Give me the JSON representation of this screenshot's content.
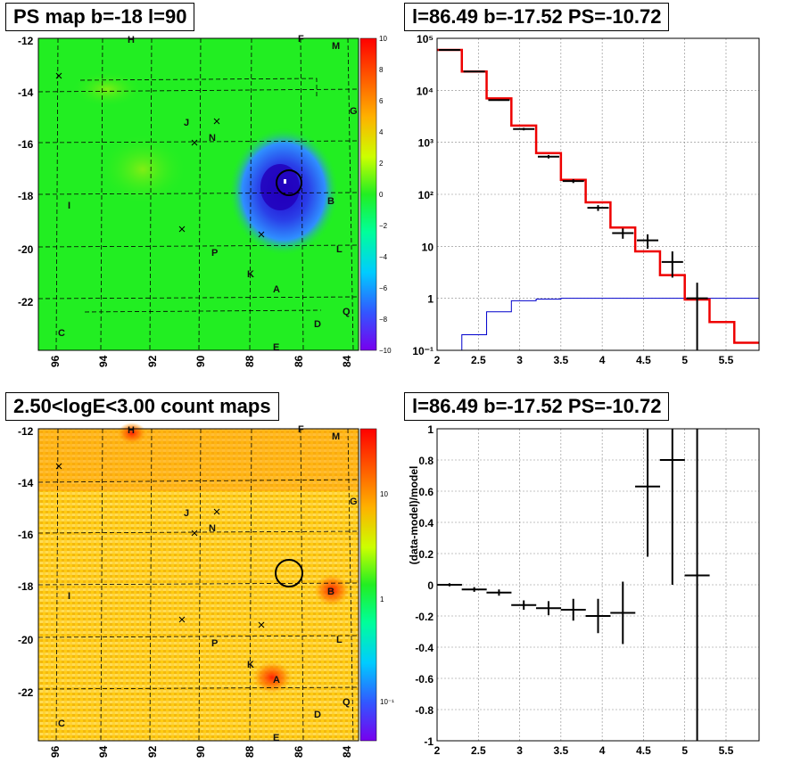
{
  "panels": {
    "ps_map": {
      "title": "PS map b=-18 l=90",
      "colorbar_ticks": [
        "10",
        "8",
        "6",
        "4",
        "2",
        "0",
        "−2",
        "−4",
        "−6",
        "−8",
        "−10"
      ]
    },
    "spectrum": {
      "title": "l=86.49 b=-17.52 PS=-10.72"
    },
    "count_map": {
      "title": "2.50<logE<3.00 count maps",
      "colorbar_ticks": [
        "10",
        "1",
        "10⁻¹"
      ]
    },
    "residual": {
      "title": "l=86.49 b=-17.52 PS=-10.72"
    }
  },
  "sky_map": {
    "x_ticks": [
      "96",
      "94",
      "92",
      "90",
      "88",
      "86",
      "84"
    ],
    "y_ticks": [
      "-12",
      "-14",
      "-16",
      "-18",
      "-20",
      "-22"
    ],
    "source_labels": [
      "H",
      "F",
      "M",
      "J",
      "G",
      "N",
      "I",
      "B",
      "P",
      "L",
      "K",
      "A",
      "Q",
      "D",
      "C",
      "E"
    ]
  },
  "chart_data": [
    {
      "type": "line",
      "panel": "spectrum",
      "title": "l=86.49 b=-17.52 PS=-10.72",
      "xlabel": "",
      "ylabel": "",
      "xlim": [
        2,
        5.9
      ],
      "ylim": [
        0.1,
        100000
      ],
      "yscale": "log",
      "grid": true,
      "x_ticks": [
        "2",
        "2.5",
        "3",
        "3.5",
        "4",
        "4.5",
        "5",
        "5.5"
      ],
      "y_ticks": [
        "10⁻¹",
        "1",
        "10",
        "10²",
        "10³",
        "10⁴",
        "10⁵"
      ],
      "series": [
        {
          "style": "red-step",
          "bin_edges": [
            2.0,
            2.3,
            2.6,
            2.9,
            3.2,
            3.5,
            3.8,
            4.1,
            4.4,
            4.7,
            5.0,
            5.3,
            5.6,
            5.9
          ],
          "values": [
            60000,
            23000,
            7000,
            2100,
            620,
            190,
            70,
            23,
            8,
            2.8,
            0.95,
            0.35,
            0.14
          ]
        },
        {
          "style": "blue-step",
          "bin_edges": [
            2.0,
            2.3,
            2.6,
            2.9,
            3.2,
            3.5,
            3.8,
            4.1,
            4.4,
            4.7,
            5.0,
            5.3,
            5.6,
            5.9
          ],
          "values": [
            0.1,
            0.2,
            0.55,
            0.9,
            0.97,
            1.0,
            1.0,
            1.0,
            1.0,
            1.0,
            1.0,
            1.0,
            1.0
          ]
        },
        {
          "style": "black-points",
          "x": [
            2.15,
            2.45,
            2.75,
            3.05,
            3.35,
            3.65,
            3.95,
            4.25,
            4.55,
            4.85,
            5.15
          ],
          "values": [
            60000,
            23000,
            6500,
            1800,
            530,
            180,
            55,
            18,
            13,
            5,
            1
          ],
          "err_lo": [
            59000,
            22500,
            6300,
            1700,
            490,
            165,
            48,
            14,
            9,
            2.5,
            0.1
          ],
          "err_hi": [
            61000,
            23500,
            6700,
            1900,
            570,
            195,
            62,
            22,
            17,
            8,
            2
          ]
        }
      ]
    },
    {
      "type": "scatter",
      "panel": "residual",
      "title": "l=86.49 b=-17.52 PS=-10.72",
      "xlabel": "",
      "ylabel": "(data-model)/model",
      "xlim": [
        2,
        5.9
      ],
      "ylim": [
        -1,
        1
      ],
      "grid": true,
      "x_ticks": [
        "2",
        "2.5",
        "3",
        "3.5",
        "4",
        "4.5",
        "5",
        "5.5"
      ],
      "y_ticks": [
        "-1",
        "-0.8",
        "-0.6",
        "-0.4",
        "-0.2",
        "0",
        "0.2",
        "0.4",
        "0.6",
        "0.8",
        "1"
      ],
      "x": [
        2.15,
        2.45,
        2.75,
        3.05,
        3.35,
        3.65,
        3.95,
        4.25,
        4.55,
        4.85,
        5.15
      ],
      "values": [
        0.0,
        -0.03,
        -0.05,
        -0.13,
        -0.15,
        -0.16,
        -0.2,
        -0.18,
        0.63,
        0.8,
        0.06
      ],
      "err": [
        0.01,
        0.015,
        0.02,
        0.03,
        0.045,
        0.07,
        0.11,
        0.2,
        0.45,
        0.8,
        1.2
      ]
    }
  ]
}
